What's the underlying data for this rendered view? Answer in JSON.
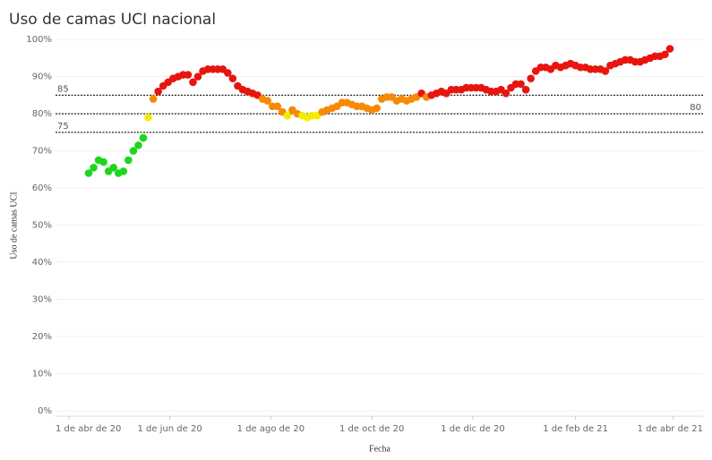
{
  "chart_data": {
    "type": "scatter",
    "title": "Uso de camas UCI nacional",
    "x_label": "Fecha",
    "y_label": "Uso de camas UCI",
    "xlim": [
      "2020-03-24",
      "2021-04-19"
    ],
    "xticks": [
      {
        "value": "2020-04-01",
        "label": "1 de abr de 20"
      },
      {
        "value": "2020-06-01",
        "label": "1 de jun de 20"
      },
      {
        "value": "2020-08-01",
        "label": "1 de ago de 20"
      },
      {
        "value": "2020-10-01",
        "label": "1 de oct de 20"
      },
      {
        "value": "2020-12-01",
        "label": "1 de dic de 20"
      },
      {
        "value": "2021-02-01",
        "label": "1 de feb de 21"
      },
      {
        "value": "2021-04-01",
        "label": "1 de abr de 21"
      }
    ],
    "ylim": [
      0,
      101
    ],
    "yticks": [
      {
        "value": 0,
        "label": "0%"
      },
      {
        "value": 10,
        "label": "10%"
      },
      {
        "value": 20,
        "label": "20%"
      },
      {
        "value": 30,
        "label": "30%"
      },
      {
        "value": 40,
        "label": "40%"
      },
      {
        "value": 50,
        "label": "50%"
      },
      {
        "value": 60,
        "label": "60%"
      },
      {
        "value": 70,
        "label": "70%"
      },
      {
        "value": 80,
        "label": "80%"
      },
      {
        "value": 90,
        "label": "90%"
      },
      {
        "value": 100,
        "label": "100%"
      }
    ],
    "grid": true,
    "reference_lines": [
      {
        "value": 85,
        "label_side": "left"
      },
      {
        "value": 80,
        "label_side": "right"
      },
      {
        "value": 75,
        "label_side": "left"
      }
    ],
    "point_colors": [
      "#1fd61f",
      "#f2ec00",
      "#f78a05",
      "#e8150f"
    ],
    "x": [
      "2020-04-13",
      "2020-04-16",
      "2020-04-19",
      "2020-04-22",
      "2020-04-25",
      "2020-04-28",
      "2020-05-01",
      "2020-05-04",
      "2020-05-07",
      "2020-05-10",
      "2020-05-13",
      "2020-05-16",
      "2020-05-19",
      "2020-05-22",
      "2020-05-25",
      "2020-05-28",
      "2020-05-31",
      "2020-06-03",
      "2020-06-06",
      "2020-06-09",
      "2020-06-12",
      "2020-06-15",
      "2020-06-18",
      "2020-06-21",
      "2020-06-24",
      "2020-06-27",
      "2020-06-30",
      "2020-07-03",
      "2020-07-06",
      "2020-07-09",
      "2020-07-12",
      "2020-07-15",
      "2020-07-18",
      "2020-07-21",
      "2020-07-24",
      "2020-07-27",
      "2020-07-30",
      "2020-08-02",
      "2020-08-05",
      "2020-08-08",
      "2020-08-11",
      "2020-08-14",
      "2020-08-17",
      "2020-08-20",
      "2020-08-23",
      "2020-08-26",
      "2020-08-29",
      "2020-09-01",
      "2020-09-04",
      "2020-09-07",
      "2020-09-10",
      "2020-09-13",
      "2020-09-16",
      "2020-09-19",
      "2020-09-22",
      "2020-09-25",
      "2020-09-28",
      "2020-10-01",
      "2020-10-04",
      "2020-10-07",
      "2020-10-10",
      "2020-10-13",
      "2020-10-16",
      "2020-10-19",
      "2020-10-22",
      "2020-10-25",
      "2020-10-28",
      "2020-10-31",
      "2020-11-03",
      "2020-11-06",
      "2020-11-09",
      "2020-11-12",
      "2020-11-15",
      "2020-11-18",
      "2020-11-21",
      "2020-11-24",
      "2020-11-27",
      "2020-11-30",
      "2020-12-03",
      "2020-12-06",
      "2020-12-09",
      "2020-12-12",
      "2020-12-15",
      "2020-12-18",
      "2020-12-21",
      "2020-12-24",
      "2020-12-27",
      "2020-12-30",
      "2021-01-02",
      "2021-01-05",
      "2021-01-08",
      "2021-01-11",
      "2021-01-14",
      "2021-01-17",
      "2021-01-20",
      "2021-01-23",
      "2021-01-26",
      "2021-01-29",
      "2021-02-01",
      "2021-02-04",
      "2021-02-07",
      "2021-02-10",
      "2021-02-13",
      "2021-02-16",
      "2021-02-19",
      "2021-02-22",
      "2021-02-25",
      "2021-02-28",
      "2021-03-03",
      "2021-03-06",
      "2021-03-09",
      "2021-03-12",
      "2021-03-15",
      "2021-03-18",
      "2021-03-21",
      "2021-03-24",
      "2021-03-27",
      "2021-03-30"
    ],
    "values": [
      64,
      65.5,
      67.5,
      67,
      64.5,
      65.5,
      64,
      64.5,
      67.5,
      70,
      71.5,
      73.5,
      79,
      84,
      86,
      87.5,
      88.5,
      89.5,
      90,
      90.5,
      90.5,
      88.5,
      90,
      91.5,
      92,
      92,
      92,
      92,
      91,
      89.5,
      87.5,
      86.5,
      86,
      85.5,
      85,
      84,
      83.5,
      82,
      82,
      80.5,
      79.5,
      81,
      80,
      79.5,
      79,
      79.5,
      79.5,
      80.5,
      81,
      81.5,
      82,
      83,
      83,
      82.5,
      82,
      82,
      81.5,
      81,
      81.5,
      84,
      84.5,
      84.5,
      83.5,
      84,
      83.5,
      84,
      84.5,
      85.5,
      84.5,
      85,
      85.5,
      86,
      85.5,
      86.5,
      86.5,
      86.5,
      87,
      87,
      87,
      87,
      86.5,
      86,
      86,
      86.5,
      85.5,
      87,
      88,
      88,
      86.5,
      89.5,
      91.5,
      92.5,
      92.5,
      92,
      93,
      92.5,
      93,
      93.5,
      93,
      92.5,
      92.5,
      92,
      92,
      92,
      91.5,
      93,
      93.5,
      94,
      94.5,
      94.5,
      94,
      94,
      94.5,
      95,
      95.5,
      95.5,
      96,
      97.5
    ]
  }
}
